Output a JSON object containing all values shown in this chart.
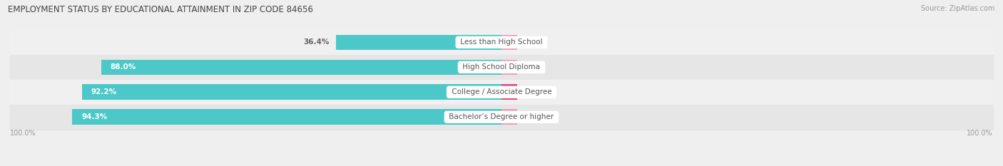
{
  "title": "EMPLOYMENT STATUS BY EDUCATIONAL ATTAINMENT IN ZIP CODE 84656",
  "source": "Source: ZipAtlas.com",
  "categories": [
    "Less than High School",
    "High School Diploma",
    "College / Associate Degree",
    "Bachelor’s Degree or higher"
  ],
  "labor_force": [
    36.4,
    88.0,
    92.2,
    94.3
  ],
  "unemployed": [
    0.0,
    0.0,
    3.4,
    0.0
  ],
  "labor_force_color": "#4dc8c8",
  "unemployed_color_large": "#e05080",
  "unemployed_color_small": "#f0a0b8",
  "row_bg_even": "#f0f0f0",
  "row_bg_odd": "#e6e6e6",
  "label_text_color": "#555555",
  "title_color": "#444444",
  "axis_label_color": "#999999",
  "value_color_inside": "#ffffff",
  "value_color_outside": "#666666",
  "left_axis_label": "100.0%",
  "right_axis_label": "100.0%",
  "max_lf": 100.0,
  "max_unemp": 100.0,
  "figsize": [
    14.06,
    2.33
  ],
  "dpi": 100
}
